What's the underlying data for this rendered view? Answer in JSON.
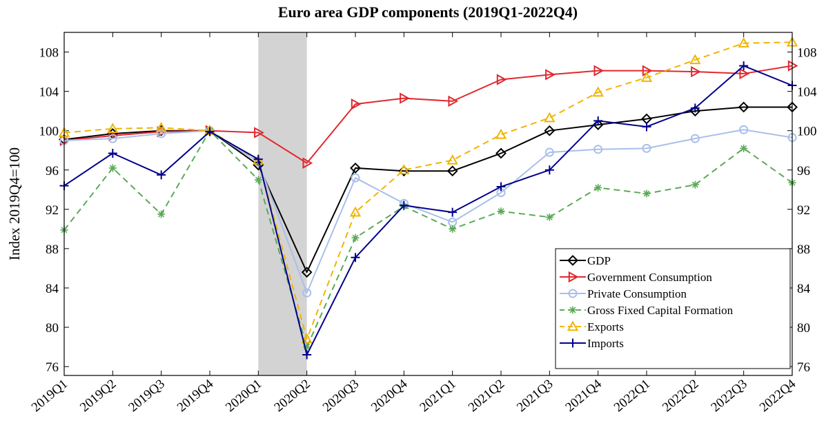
{
  "chart_data": {
    "type": "line",
    "title": "Euro area GDP components (2019Q1-2022Q4)",
    "y_label": "Index 2019Q4=100",
    "categories": [
      "2019Q1",
      "2019Q2",
      "2019Q3",
      "2019Q4",
      "2020Q1",
      "2020Q2",
      "2020Q3",
      "2020Q4",
      "2021Q1",
      "2021Q2",
      "2021Q3",
      "2021Q4",
      "2022Q1",
      "2022Q2",
      "2022Q3",
      "2022Q4"
    ],
    "shaded_span": [
      "2020Q1",
      "2020Q2"
    ],
    "shade_color": "#d3d3d3",
    "ylim": [
      75.1,
      110
    ],
    "yticks": [
      76,
      80,
      84,
      88,
      92,
      96,
      100,
      104,
      108
    ],
    "y2lim": [
      75.1,
      110
    ],
    "y2ticks": [
      76,
      80,
      84,
      88,
      92,
      96,
      100,
      104,
      108
    ],
    "grid": false,
    "legend_position": "lower right",
    "series": [
      {
        "name": "GDP",
        "color": "#000000",
        "marker": "diamond",
        "dash": "solid",
        "values": [
          99.1,
          99.7,
          100.0,
          100.0,
          96.5,
          85.6,
          96.2,
          95.9,
          95.9,
          97.7,
          100.0,
          100.6,
          101.2,
          102.0,
          102.4,
          102.4
        ]
      },
      {
        "name": "Government Consumption",
        "color": "#e0282e",
        "marker": "triangle-right",
        "dash": "solid",
        "values": [
          99.0,
          99.5,
          99.9,
          100.0,
          99.8,
          96.7,
          102.7,
          103.3,
          103.0,
          105.2,
          105.7,
          106.1,
          106.1,
          106.0,
          105.8,
          106.6
        ]
      },
      {
        "name": "Private Consumption",
        "color": "#a9bfe9",
        "marker": "circle",
        "dash": "solid",
        "values": [
          99.0,
          99.2,
          99.7,
          100.0,
          96.8,
          83.5,
          95.2,
          92.6,
          90.7,
          93.7,
          97.8,
          98.1,
          98.2,
          99.2,
          100.1,
          99.3
        ]
      },
      {
        "name": "Gross Fixed Capital Formation",
        "color": "#5aaa55",
        "marker": "asterisk",
        "dash": "dashed",
        "values": [
          89.9,
          96.2,
          91.5,
          100.0,
          95.0,
          78.0,
          89.1,
          92.3,
          90.0,
          91.8,
          91.2,
          94.2,
          93.6,
          94.5,
          98.2,
          94.7
        ]
      },
      {
        "name": "Exports",
        "color": "#f0b400",
        "marker": "triangle-up",
        "dash": "dashed",
        "values": [
          99.8,
          100.2,
          100.3,
          100.0,
          97.0,
          78.8,
          91.7,
          96.0,
          97.0,
          99.6,
          101.3,
          103.9,
          105.4,
          107.2,
          108.9,
          109.0
        ]
      },
      {
        "name": "Imports",
        "color": "#00008b",
        "marker": "plus",
        "dash": "solid",
        "values": [
          94.4,
          97.7,
          95.5,
          99.9,
          97.1,
          77.2,
          87.1,
          92.4,
          91.7,
          94.3,
          96.0,
          101.0,
          100.4,
          102.3,
          106.6,
          104.6
        ]
      }
    ]
  }
}
